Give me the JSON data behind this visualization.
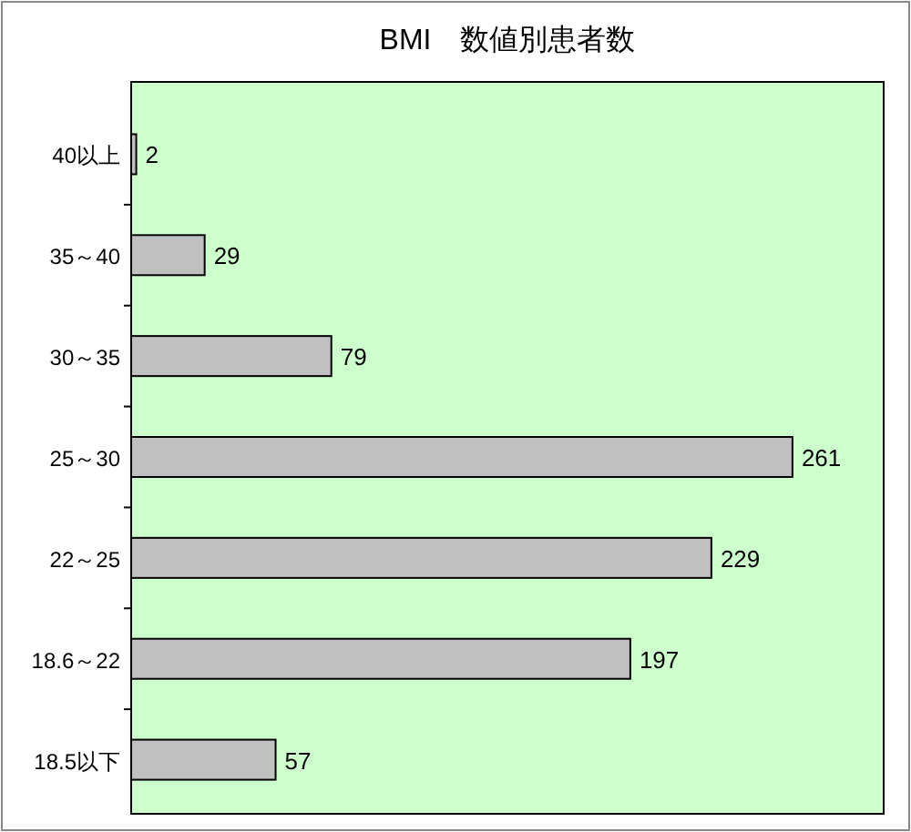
{
  "chart_data": {
    "type": "bar",
    "orientation": "horizontal",
    "title": "BMI　数値別患者数",
    "categories": [
      "40以上",
      "35～40",
      "30～35",
      "25～30",
      "22～25",
      "18.6～22",
      "18.5以下"
    ],
    "values": [
      2,
      29,
      79,
      261,
      229,
      197,
      57
    ],
    "color": "#c0c0c0",
    "xlim": [
      0,
      297
    ],
    "data_labels": true
  }
}
